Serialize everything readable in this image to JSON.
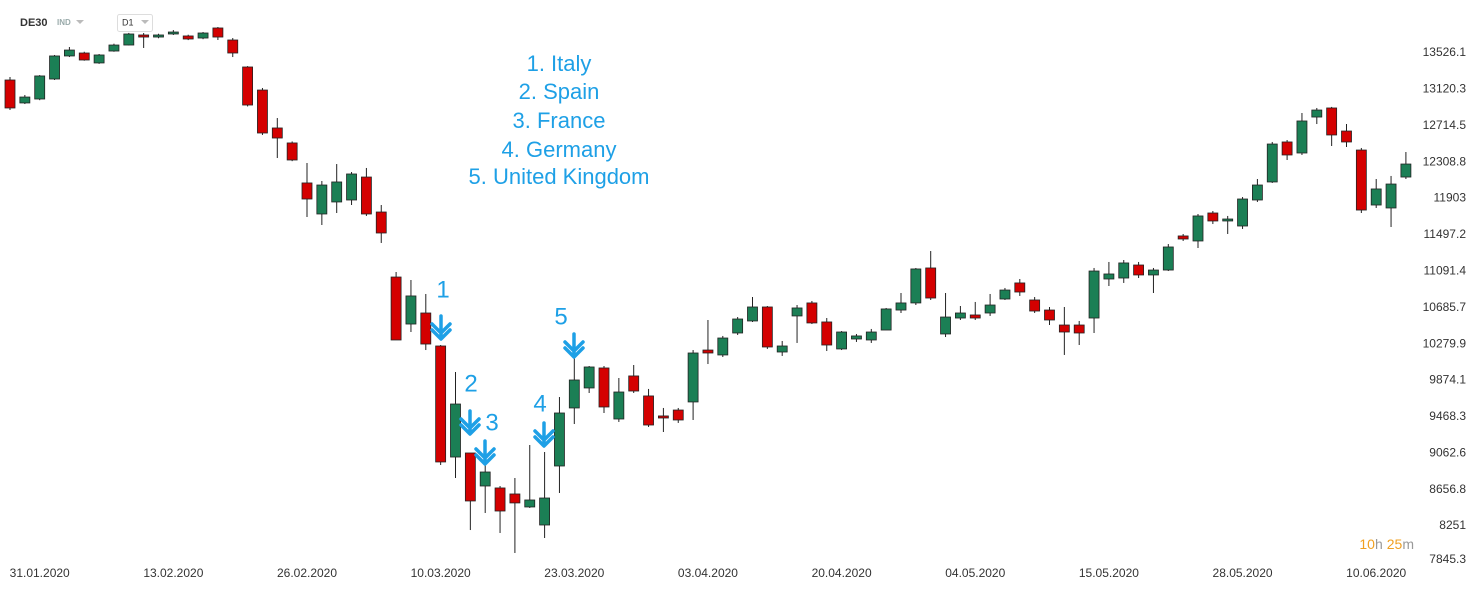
{
  "header": {
    "symbol": "DE30",
    "market": "IND",
    "timeframe": "D1",
    "countdown": [
      "10",
      "h",
      "25",
      "m"
    ]
  },
  "chart_data": {
    "type": "candlestick",
    "annotation_lines": [
      "1. Italy",
      "2. Spain",
      "3. France",
      "4. Germany",
      "5. United Kingdom"
    ],
    "markers": [
      "1",
      "2",
      "3",
      "4",
      "5"
    ],
    "up_color": "#1b7f55",
    "down_color": "#d40000",
    "categories": [
      null,
      null,
      "31.01.2020",
      null,
      null,
      null,
      null,
      null,
      null,
      null,
      null,
      "13.02.2020",
      null,
      null,
      null,
      null,
      null,
      null,
      null,
      null,
      "26.02.2020",
      null,
      null,
      null,
      null,
      null,
      null,
      null,
      null,
      "10.03.2020",
      null,
      null,
      null,
      null,
      null,
      null,
      null,
      null,
      "23.03.2020",
      null,
      null,
      null,
      null,
      null,
      null,
      null,
      null,
      "03.04.2020",
      null,
      null,
      null,
      null,
      null,
      null,
      null,
      null,
      "20.04.2020",
      null,
      null,
      null,
      null,
      null,
      null,
      null,
      null,
      "04.05.2020",
      null,
      null,
      null,
      null,
      null,
      null,
      null,
      null,
      "15.05.2020",
      null,
      null,
      null,
      null,
      null,
      null,
      null,
      null,
      "28.05.2020",
      null,
      null,
      null,
      null,
      null,
      null,
      null,
      null,
      "10.06.2020",
      null,
      null
    ],
    "open": [
      13225,
      12969,
      13013,
      13236,
      13493,
      13526,
      13415,
      13548,
      13615,
      13727,
      13704,
      13738,
      13716,
      13693,
      13805,
      13671,
      13370,
      13113,
      12690,
      12523,
      12077,
      11731,
      11865,
      11887,
      12143,
      11753,
      11028,
      10504,
      10627,
      10259,
      9021,
      9066,
      8698,
      8676,
      8609,
      8464,
      8263,
      8921,
      9568,
      9791,
      10014,
      9445,
      9925,
      9702,
      9479,
      9545,
      9635,
      10214,
      10159,
      10404,
      10538,
      10694,
      10192,
      10594,
      10739,
      10527,
      10226,
      10337,
      10326,
      10437,
      10660,
      10739,
      11129,
      10393,
      10571,
      10605,
      10627,
      10783,
      10962,
      10772,
      10660,
      10493,
      10493,
      10571,
      11006,
      11017,
      11162,
      11051,
      11106,
      11486,
      11430,
      11742,
      11653,
      11597,
      11887,
      12088,
      12534,
      12411,
      12812,
      12913,
      12656,
      12444,
      11831,
      11798,
      12143
    ],
    "high": [
      13258,
      13058,
      13280,
      13504,
      13593,
      13540,
      13515,
      13630,
      13750,
      13749,
      13740,
      13782,
      13730,
      13760,
      13816,
      13693,
      13380,
      13136,
      12801,
      12540,
      12300,
      12099,
      12288,
      12199,
      12244,
      11831,
      11084,
      10995,
      10839,
      10270,
      9969,
      9066,
      8955,
      8698,
      8787,
      9155,
      9077,
      9690,
      10148,
      10036,
      10036,
      9902,
      10047,
      9780,
      9568,
      9568,
      10214,
      10549,
      10371,
      10582,
      10805,
      10705,
      10315,
      10716,
      10761,
      10571,
      10426,
      10393,
      10449,
      10683,
      10850,
      11129,
      11318,
      10850,
      10705,
      10750,
      10839,
      10906,
      11006,
      10805,
      10694,
      10694,
      10538,
      11129,
      11196,
      11218,
      11196,
      11129,
      11396,
      11508,
      11731,
      11764,
      11709,
      11920,
      12121,
      12534,
      12556,
      12857,
      12913,
      12925,
      12734,
      12467,
      12121,
      12155,
      12422
    ],
    "low": [
      12890,
      12957,
      13000,
      13225,
      13481,
      13440,
      13405,
      13540,
      13610,
      13582,
      13690,
      13727,
      13670,
      13680,
      13671,
      13481,
      12930,
      12612,
      12355,
      12320,
      11697,
      11608,
      11742,
      11831,
      11709,
      11408,
      10326,
      10415,
      10214,
      8932,
      8787,
      8207,
      8397,
      8174,
      7951,
      8453,
      8118,
      8620,
      9389,
      9735,
      9512,
      9412,
      9735,
      9356,
      9300,
      9401,
      9434,
      10058,
      10136,
      10382,
      10527,
      10226,
      10148,
      10293,
      10504,
      10203,
      10214,
      10304,
      10293,
      10437,
      10627,
      10716,
      10772,
      10359,
      10549,
      10549,
      10594,
      10772,
      10817,
      10627,
      10493,
      10159,
      10270,
      10404,
      10928,
      10962,
      11017,
      10850,
      11095,
      11430,
      11352,
      11619,
      11508,
      11564,
      11865,
      12077,
      12333,
      12389,
      12734,
      12489,
      12478,
      11742,
      11798,
      11586,
      12121
    ],
    "close": [
      12913,
      13035,
      13270,
      13493,
      13559,
      13448,
      13504,
      13615,
      13738,
      13704,
      13727,
      13760,
      13682,
      13749,
      13704,
      13526,
      12946,
      12634,
      12578,
      12333,
      11898,
      12054,
      12088,
      12177,
      11731,
      11519,
      10326,
      10817,
      10281,
      8966,
      9612,
      8531,
      8854,
      8419,
      8509,
      8542,
      8564,
      9512,
      9880,
      10025,
      9579,
      9746,
      9757,
      9378,
      9456,
      9434,
      10181,
      10181,
      10348,
      10560,
      10694,
      10248,
      10259,
      10683,
      10516,
      10270,
      10415,
      10371,
      10415,
      10672,
      10739,
      11118,
      10794,
      10582,
      10627,
      10571,
      10716,
      10883,
      10861,
      10649,
      10549,
      10415,
      10404,
      11095,
      11062,
      11185,
      11051,
      11106,
      11363,
      11452,
      11709,
      11653,
      11675,
      11898,
      12054,
      12511,
      12389,
      12768,
      12890,
      12612,
      12534,
      11775,
      12010,
      12065,
      12288
    ],
    "ylim": [
      7817,
      14117
    ],
    "yticks": [
      13526.1,
      13120.3,
      12714.5,
      12308.8,
      11903.0,
      11497.2,
      11091.4,
      10685.7,
      10279.9,
      9874.1,
      9468.3,
      9062.6,
      8656.8,
      8251.0,
      7845.3
    ]
  }
}
